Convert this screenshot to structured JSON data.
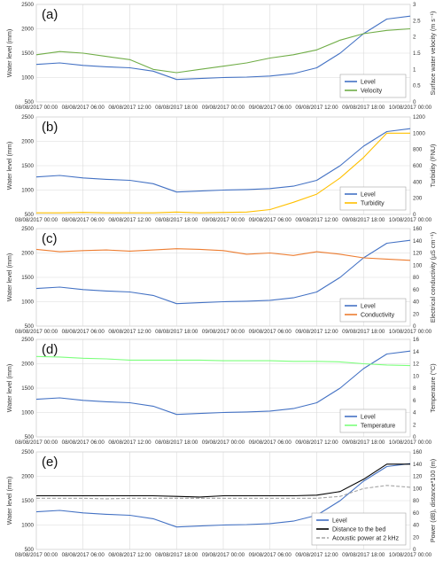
{
  "colors": {
    "level": "#4472c4",
    "velocity": "#70ad47",
    "turbidity": "#ffc000",
    "conductivity": "#ed7d31",
    "temperature": "#7cff7c",
    "distance": "#000000",
    "acoustic": "#a5a5a5",
    "grid": "#d9d9d9",
    "axis": "#bfbfbf"
  },
  "chart_data": [
    {
      "type": "line",
      "panel_label": "(a)",
      "xlabel": "",
      "ylabel": "Water level (mm)",
      "y2label": "Surface water velocity (m s⁻¹)",
      "ylim": [
        500,
        2500
      ],
      "y_ticks": [
        "500",
        "1000",
        "1500",
        "2000",
        "2500"
      ],
      "y2lim": [
        0,
        3
      ],
      "y2_ticks": [
        "0",
        "0.5",
        "1",
        "1.5",
        "2",
        "2.5",
        "3"
      ],
      "x_ticks": [
        "08/08/2017 00:00",
        "08/08/2017 06:00",
        "08/08/2017 12:00",
        "08/08/2017 18:00",
        "09/08/2017 00:00",
        "09/08/2017 06:00",
        "09/08/2017 12:00",
        "09/08/2017 18:00",
        "10/08/2017 00:00"
      ],
      "legend": "bottom-right",
      "grid": true,
      "series": [
        {
          "name": "Level",
          "axis": "left",
          "color_key": "level",
          "x": [
            0,
            3,
            6,
            9,
            12,
            15,
            18,
            21,
            24,
            27,
            30,
            33,
            36,
            39,
            42,
            45,
            48
          ],
          "values": [
            1270,
            1300,
            1250,
            1220,
            1200,
            1130,
            960,
            980,
            1000,
            1010,
            1030,
            1080,
            1200,
            1500,
            1900,
            2200,
            2260
          ]
        },
        {
          "name": "Velocity",
          "axis": "right",
          "color_key": "velocity",
          "x": [
            0,
            3,
            6,
            9,
            12,
            15,
            18,
            21,
            24,
            27,
            30,
            33,
            36,
            39,
            42,
            45,
            48
          ],
          "values": [
            1.45,
            1.55,
            1.5,
            1.4,
            1.3,
            1.0,
            0.9,
            1.0,
            1.1,
            1.2,
            1.35,
            1.45,
            1.6,
            1.9,
            2.1,
            2.2,
            2.25
          ]
        }
      ]
    },
    {
      "type": "line",
      "panel_label": "(b)",
      "xlabel": "",
      "ylabel": "Water level (mm)",
      "y2label": "Turbidity (FNU)",
      "ylim": [
        500,
        2500
      ],
      "y_ticks": [
        "500",
        "1000",
        "1500",
        "2000",
        "2500"
      ],
      "y2lim": [
        0,
        1200
      ],
      "y2_ticks": [
        "0",
        "200",
        "400",
        "600",
        "800",
        "1000",
        "1200"
      ],
      "x_ticks": [
        "08/08/2017 00:00",
        "08/08/2017 06:00",
        "08/08/2017 12:00",
        "08/08/2017 18:00",
        "09/08/2017 00:00",
        "09/08/2017 06:00",
        "09/08/2017 12:00",
        "09/08/2017 18:00",
        "10/08/2017 00:00"
      ],
      "legend": "bottom-right",
      "grid": true,
      "series": [
        {
          "name": "Level",
          "axis": "left",
          "color_key": "level",
          "x": [
            0,
            3,
            6,
            9,
            12,
            15,
            18,
            21,
            24,
            27,
            30,
            33,
            36,
            39,
            42,
            45,
            48
          ],
          "values": [
            1270,
            1300,
            1250,
            1220,
            1200,
            1130,
            960,
            980,
            1000,
            1010,
            1030,
            1080,
            1200,
            1500,
            1900,
            2200,
            2260
          ]
        },
        {
          "name": "Turbidity",
          "axis": "right",
          "color_key": "turbidity",
          "x": [
            0,
            3,
            6,
            9,
            12,
            15,
            18,
            21,
            24,
            27,
            30,
            33,
            36,
            39,
            42,
            45,
            48
          ],
          "values": [
            20,
            20,
            25,
            20,
            20,
            20,
            30,
            20,
            25,
            30,
            60,
            150,
            250,
            450,
            700,
            1000,
            1000
          ]
        }
      ]
    },
    {
      "type": "line",
      "panel_label": "(c)",
      "xlabel": "",
      "ylabel": "Water level (mm)",
      "y2label": "Electrical conductivity (µS cm⁻¹)",
      "ylim": [
        500,
        2500
      ],
      "y_ticks": [
        "500",
        "1000",
        "1500",
        "2000",
        "2500"
      ],
      "y2lim": [
        0,
        160
      ],
      "y2_ticks": [
        "0",
        "20",
        "40",
        "60",
        "80",
        "100",
        "120",
        "140",
        "160"
      ],
      "x_ticks": [
        "08/08/2017 00:00",
        "08/08/2017 06:00",
        "08/08/2017 12:00",
        "08/08/2017 18:00",
        "09/08/2017 00:00",
        "09/08/2017 06:00",
        "09/08/2017 12:00",
        "09/08/2017 18:00",
        "10/08/2017 00:00"
      ],
      "legend": "bottom-right",
      "grid": true,
      "series": [
        {
          "name": "Level",
          "axis": "left",
          "color_key": "level",
          "x": [
            0,
            3,
            6,
            9,
            12,
            15,
            18,
            21,
            24,
            27,
            30,
            33,
            36,
            39,
            42,
            45,
            48
          ],
          "values": [
            1270,
            1300,
            1250,
            1220,
            1200,
            1130,
            960,
            980,
            1000,
            1010,
            1030,
            1080,
            1200,
            1500,
            1900,
            2200,
            2260
          ]
        },
        {
          "name": "Conductivity",
          "axis": "right",
          "color_key": "conductivity",
          "x": [
            0,
            3,
            6,
            9,
            12,
            15,
            18,
            21,
            24,
            27,
            30,
            33,
            36,
            39,
            42,
            45,
            48
          ],
          "values": [
            126,
            122,
            124,
            125,
            123,
            125,
            127,
            126,
            124,
            118,
            120,
            116,
            122,
            118,
            112,
            110,
            108
          ]
        }
      ]
    },
    {
      "type": "line",
      "panel_label": "(d)",
      "xlabel": "",
      "ylabel": "Water level (mm)",
      "y2label": "Temperature (°C)",
      "ylim": [
        500,
        2500
      ],
      "y_ticks": [
        "500",
        "1000",
        "1500",
        "2000",
        "2500"
      ],
      "y2lim": [
        0,
        16
      ],
      "y2_ticks": [
        "0",
        "2",
        "4",
        "6",
        "8",
        "10",
        "12",
        "14",
        "16"
      ],
      "x_ticks": [
        "08/08/2017 00:00",
        "08/08/2017 06:00",
        "08/08/2017 12:00",
        "08/08/2017 18:00",
        "09/08/2017 00:00",
        "09/08/2017 06:00",
        "09/08/2017 12:00",
        "09/08/2017 18:00",
        "10/08/2017 00:00"
      ],
      "legend": "bottom-right",
      "grid": true,
      "series": [
        {
          "name": "Level",
          "axis": "left",
          "color_key": "level",
          "x": [
            0,
            3,
            6,
            9,
            12,
            15,
            18,
            21,
            24,
            27,
            30,
            33,
            36,
            39,
            42,
            45,
            48
          ],
          "values": [
            1270,
            1300,
            1250,
            1220,
            1200,
            1130,
            960,
            980,
            1000,
            1010,
            1030,
            1080,
            1200,
            1500,
            1900,
            2200,
            2260
          ]
        },
        {
          "name": "Temperature",
          "axis": "right",
          "color_key": "temperature",
          "x": [
            0,
            3,
            6,
            9,
            12,
            15,
            18,
            21,
            24,
            27,
            30,
            33,
            36,
            39,
            42,
            45,
            48
          ],
          "values": [
            13.2,
            13.1,
            12.9,
            12.8,
            12.6,
            12.6,
            12.6,
            12.6,
            12.5,
            12.5,
            12.5,
            12.4,
            12.4,
            12.3,
            12.0,
            11.8,
            11.7
          ]
        }
      ]
    },
    {
      "type": "line",
      "panel_label": "(e)",
      "xlabel": "",
      "ylabel": "Water level (mm)",
      "y2label": "Power (dB), distance*100 (m)",
      "ylim": [
        500,
        2500
      ],
      "y_ticks": [
        "500",
        "1000",
        "1500",
        "2000",
        "2500"
      ],
      "y2lim": [
        0,
        160
      ],
      "y2_ticks": [
        "0",
        "20",
        "40",
        "60",
        "80",
        "100",
        "120",
        "140",
        "160"
      ],
      "x_ticks": [
        "08/08/2017 00:00",
        "08/08/2017 06:00",
        "08/08/2017 12:00",
        "08/08/2017 18:00",
        "09/08/2017 00:00",
        "09/08/2017 06:00",
        "09/08/2017 12:00",
        "09/08/2017 18:00",
        "10/08/2017 00:00"
      ],
      "legend": "bottom-right",
      "grid": true,
      "series": [
        {
          "name": "Level",
          "axis": "left",
          "color_key": "level",
          "x": [
            0,
            3,
            6,
            9,
            12,
            15,
            18,
            21,
            24,
            27,
            30,
            33,
            36,
            39,
            42,
            45,
            48
          ],
          "values": [
            1270,
            1300,
            1250,
            1220,
            1200,
            1130,
            960,
            980,
            1000,
            1010,
            1030,
            1080,
            1200,
            1500,
            1900,
            2200,
            2260
          ]
        },
        {
          "name": "Distance to the bed",
          "axis": "right",
          "color_key": "distance",
          "x": [
            0,
            3,
            6,
            9,
            12,
            15,
            18,
            21,
            24,
            27,
            30,
            33,
            36,
            39,
            42,
            45,
            48
          ],
          "values": [
            88,
            88,
            88,
            88,
            88,
            88,
            87,
            86,
            88,
            88,
            88,
            88,
            89,
            95,
            115,
            140,
            140
          ]
        },
        {
          "name": "Acoustic power at 2 kHz",
          "axis": "right",
          "color_key": "acoustic",
          "x": [
            0,
            3,
            6,
            9,
            12,
            15,
            18,
            21,
            24,
            27,
            30,
            33,
            36,
            39,
            42,
            45,
            48
          ],
          "values": [
            84,
            84,
            84,
            83,
            84,
            84,
            84,
            84,
            84,
            84,
            84,
            84,
            84,
            87,
            100,
            105,
            102
          ]
        }
      ]
    }
  ]
}
